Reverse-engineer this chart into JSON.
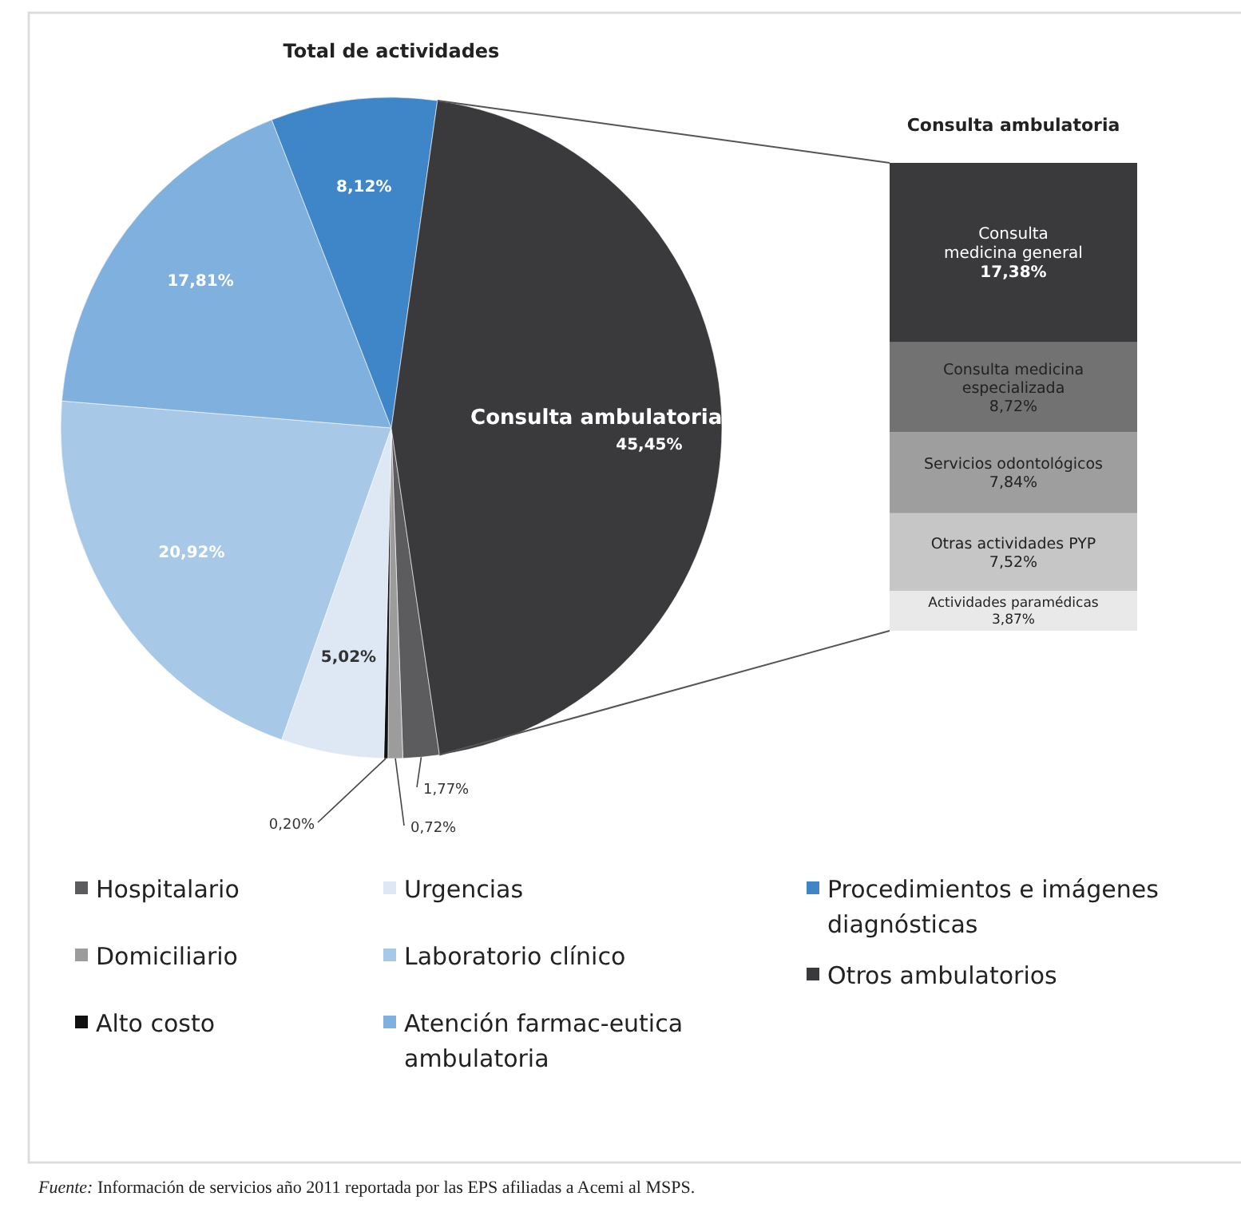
{
  "chart_data": [
    {
      "type": "pie",
      "title": "Total de actividades",
      "categories": [
        "Hospitalario",
        "Domiciliario",
        "Alto costo",
        "Urgencias",
        "Laboratorio clínico",
        "Atención farmac-eutica ambulatoria",
        "Procedimientos e imágenes diagnósticas",
        "Otros ambulatorios"
      ],
      "values": [
        1.77,
        0.72,
        0.2,
        5.02,
        20.92,
        17.81,
        8.12,
        45.45
      ],
      "colors": [
        "#5c5c5e",
        "#9c9c9c",
        "#111111",
        "#dde8f4",
        "#a8c8e8",
        "#80b1de",
        "#3f86c8",
        "#3a3a3d"
      ],
      "value_labels": [
        "1,77%",
        "0,72%",
        "0,20%",
        "5,02%",
        "20,92%",
        "17,81%",
        "8,12%",
        "45,45%"
      ],
      "legend": "bottom",
      "annotations": [
        {
          "text": "Consulta ambulatoria",
          "x": "Otros ambulatorios"
        },
        "Fuente: Información de servicios año 2011 reportada por las EPS afiliadas a Acemi al MSPS."
      ]
    },
    {
      "type": "bar",
      "title": "Consulta ambulatoria",
      "stacked": true,
      "categories": [
        null
      ],
      "series": [
        {
          "name": "Actividades paramédicas",
          "color": "#e9e9e9",
          "values": [
            3.87
          ],
          "value_labels": [
            "3,87%"
          ]
        },
        {
          "name": "Otras actividades PYP",
          "color": "#c6c6c6",
          "values": [
            7.52
          ],
          "value_labels": [
            "7,52%"
          ]
        },
        {
          "name": "Servicios odontológicos",
          "color": "#9e9e9e",
          "values": [
            7.84
          ],
          "value_labels": [
            "7,84%"
          ]
        },
        {
          "name": "Consulta medicina especializada",
          "color": "#727272",
          "values": [
            8.72
          ],
          "value_labels": [
            "8,72%"
          ]
        },
        {
          "name": "Consulta medicina general",
          "color": "#3a3a3d",
          "values": [
            17.38
          ],
          "value_labels": [
            "17,38%"
          ]
        }
      ]
    }
  ]
}
